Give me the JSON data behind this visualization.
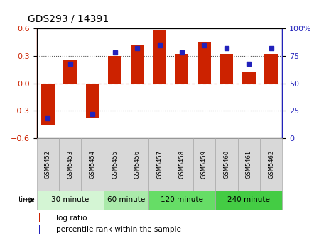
{
  "title": "GDS293 / 14391",
  "samples": [
    "GSM5452",
    "GSM5453",
    "GSM5454",
    "GSM5455",
    "GSM5456",
    "GSM5457",
    "GSM5458",
    "GSM5459",
    "GSM5460",
    "GSM5461",
    "GSM5462"
  ],
  "log_ratio": [
    -0.46,
    0.25,
    -0.38,
    0.3,
    0.42,
    0.585,
    0.32,
    0.455,
    0.32,
    0.13,
    0.32
  ],
  "percentile": [
    18,
    68,
    22,
    78,
    82,
    85,
    78,
    85,
    82,
    68,
    82
  ],
  "groups": [
    {
      "label": "30 minute",
      "start": 0,
      "end": 3,
      "color": "#d4f5d4"
    },
    {
      "label": "60 minute",
      "start": 3,
      "end": 5,
      "color": "#aaeaaa"
    },
    {
      "label": "120 minute",
      "start": 5,
      "end": 8,
      "color": "#66dd66"
    },
    {
      "label": "240 minute",
      "start": 8,
      "end": 11,
      "color": "#44cc44"
    }
  ],
  "ylim": [
    -0.6,
    0.6
  ],
  "yticks_left": [
    -0.6,
    -0.3,
    0.0,
    0.3,
    0.6
  ],
  "yticks_right": [
    0,
    25,
    50,
    75,
    100
  ],
  "bar_color": "#cc2200",
  "dot_color": "#2222bb",
  "bg_color": "#ffffff",
  "cell_bg": "#d8d8d8",
  "cell_border": "#aaaaaa"
}
